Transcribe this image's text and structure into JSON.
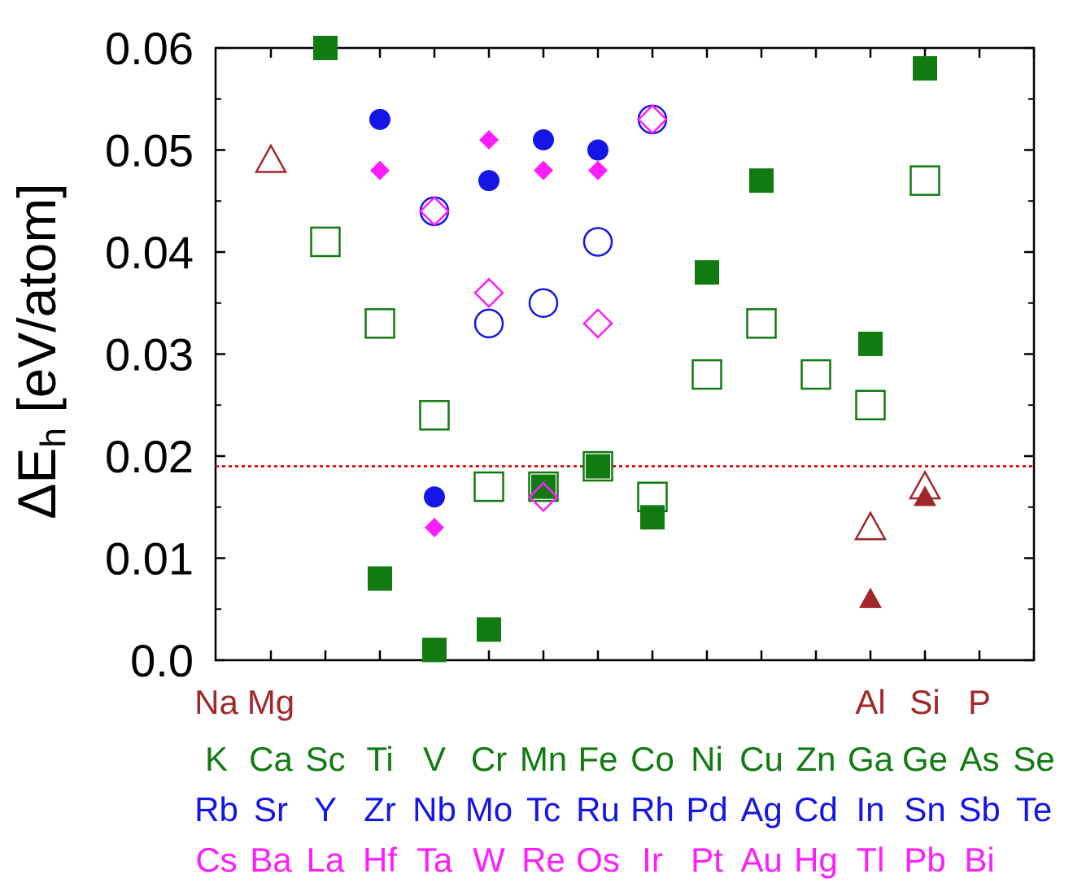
{
  "chart_data": {
    "type": "scatter",
    "ylabel_main": "ΔE",
    "ylabel_sub": "h",
    "ylabel_unit": " [eV/atom]",
    "ylim": [
      0,
      0.06
    ],
    "yticks": [
      "0.0",
      "0.01",
      "0.02",
      "0.03",
      "0.04",
      "0.05",
      "0.06"
    ],
    "reference_line": {
      "y": 0.019,
      "color": "#e0191b",
      "style": "dotted"
    },
    "colors": {
      "row3": "#a0282a",
      "row4": "#117a11",
      "row5": "#1515e8",
      "row6": "#ff1dff"
    },
    "element_rows": [
      {
        "row": "row3",
        "labels": [
          "Na",
          "Mg",
          "",
          "",
          "",
          "",
          "",
          "",
          "",
          "",
          "",
          "",
          "Al",
          "Si",
          "P",
          ""
        ]
      },
      {
        "row": "row4",
        "labels": [
          "K",
          "Ca",
          "Sc",
          "Ti",
          "V",
          "Cr",
          "Mn",
          "Fe",
          "Co",
          "Ni",
          "Cu",
          "Zn",
          "Ga",
          "Ge",
          "As",
          "Se"
        ]
      },
      {
        "row": "row5",
        "labels": [
          "Rb",
          "Sr",
          "Y",
          "Zr",
          "Nb",
          "Mo",
          "Tc",
          "Ru",
          "Rh",
          "Pd",
          "Ag",
          "Cd",
          "In",
          "Sn",
          "Sb",
          "Te"
        ]
      },
      {
        "row": "row6",
        "labels": [
          "Cs",
          "Ba",
          "La",
          "Hf",
          "Ta",
          "W",
          "Re",
          "Os",
          "Ir",
          "Pt",
          "Au",
          "Hg",
          "Tl",
          "Pb",
          "Bi",
          ""
        ]
      }
    ],
    "series": [
      {
        "row": "row3",
        "marker": "triangle",
        "filled": false,
        "points": [
          {
            "x": 1,
            "y": 0.049
          },
          {
            "x": 12,
            "y": 0.013
          },
          {
            "x": 13,
            "y": 0.017
          }
        ]
      },
      {
        "row": "row3",
        "marker": "triangle",
        "filled": true,
        "points": [
          {
            "x": 12,
            "y": 0.006
          },
          {
            "x": 13,
            "y": 0.016
          }
        ]
      },
      {
        "row": "row4",
        "marker": "square",
        "filled": true,
        "points": [
          {
            "x": 2,
            "y": 0.06
          },
          {
            "x": 3,
            "y": 0.008
          },
          {
            "x": 4,
            "y": 0.001
          },
          {
            "x": 5,
            "y": 0.003
          },
          {
            "x": 6,
            "y": 0.017
          },
          {
            "x": 7,
            "y": 0.019
          },
          {
            "x": 8,
            "y": 0.014
          },
          {
            "x": 9,
            "y": 0.038
          },
          {
            "x": 10,
            "y": 0.047
          },
          {
            "x": 12,
            "y": 0.031
          },
          {
            "x": 13,
            "y": 0.058
          }
        ]
      },
      {
        "row": "row4",
        "marker": "square",
        "filled": false,
        "points": [
          {
            "x": 2,
            "y": 0.041
          },
          {
            "x": 3,
            "y": 0.033
          },
          {
            "x": 4,
            "y": 0.024
          },
          {
            "x": 5,
            "y": 0.017
          },
          {
            "x": 6,
            "y": 0.017
          },
          {
            "x": 7,
            "y": 0.019
          },
          {
            "x": 8,
            "y": 0.016
          },
          {
            "x": 9,
            "y": 0.028
          },
          {
            "x": 10,
            "y": 0.033
          },
          {
            "x": 11,
            "y": 0.028
          },
          {
            "x": 12,
            "y": 0.025
          },
          {
            "x": 13,
            "y": 0.047
          }
        ]
      },
      {
        "row": "row5",
        "marker": "circle",
        "filled": true,
        "points": [
          {
            "x": 3,
            "y": 0.053
          },
          {
            "x": 4,
            "y": 0.016
          },
          {
            "x": 5,
            "y": 0.047
          },
          {
            "x": 6,
            "y": 0.051
          },
          {
            "x": 7,
            "y": 0.05
          }
        ]
      },
      {
        "row": "row5",
        "marker": "circle",
        "filled": false,
        "points": [
          {
            "x": 4,
            "y": 0.044
          },
          {
            "x": 5,
            "y": 0.033
          },
          {
            "x": 6,
            "y": 0.035
          },
          {
            "x": 7,
            "y": 0.041
          },
          {
            "x": 8,
            "y": 0.053
          }
        ]
      },
      {
        "row": "row6",
        "marker": "diamond",
        "filled": true,
        "points": [
          {
            "x": 3,
            "y": 0.048
          },
          {
            "x": 4,
            "y": 0.013
          },
          {
            "x": 5,
            "y": 0.051
          },
          {
            "x": 6,
            "y": 0.048
          },
          {
            "x": 7,
            "y": 0.048
          }
        ]
      },
      {
        "row": "row6",
        "marker": "diamond",
        "filled": false,
        "points": [
          {
            "x": 4,
            "y": 0.044
          },
          {
            "x": 5,
            "y": 0.036
          },
          {
            "x": 6,
            "y": 0.016
          },
          {
            "x": 7,
            "y": 0.033
          },
          {
            "x": 8,
            "y": 0.053
          }
        ]
      }
    ]
  }
}
